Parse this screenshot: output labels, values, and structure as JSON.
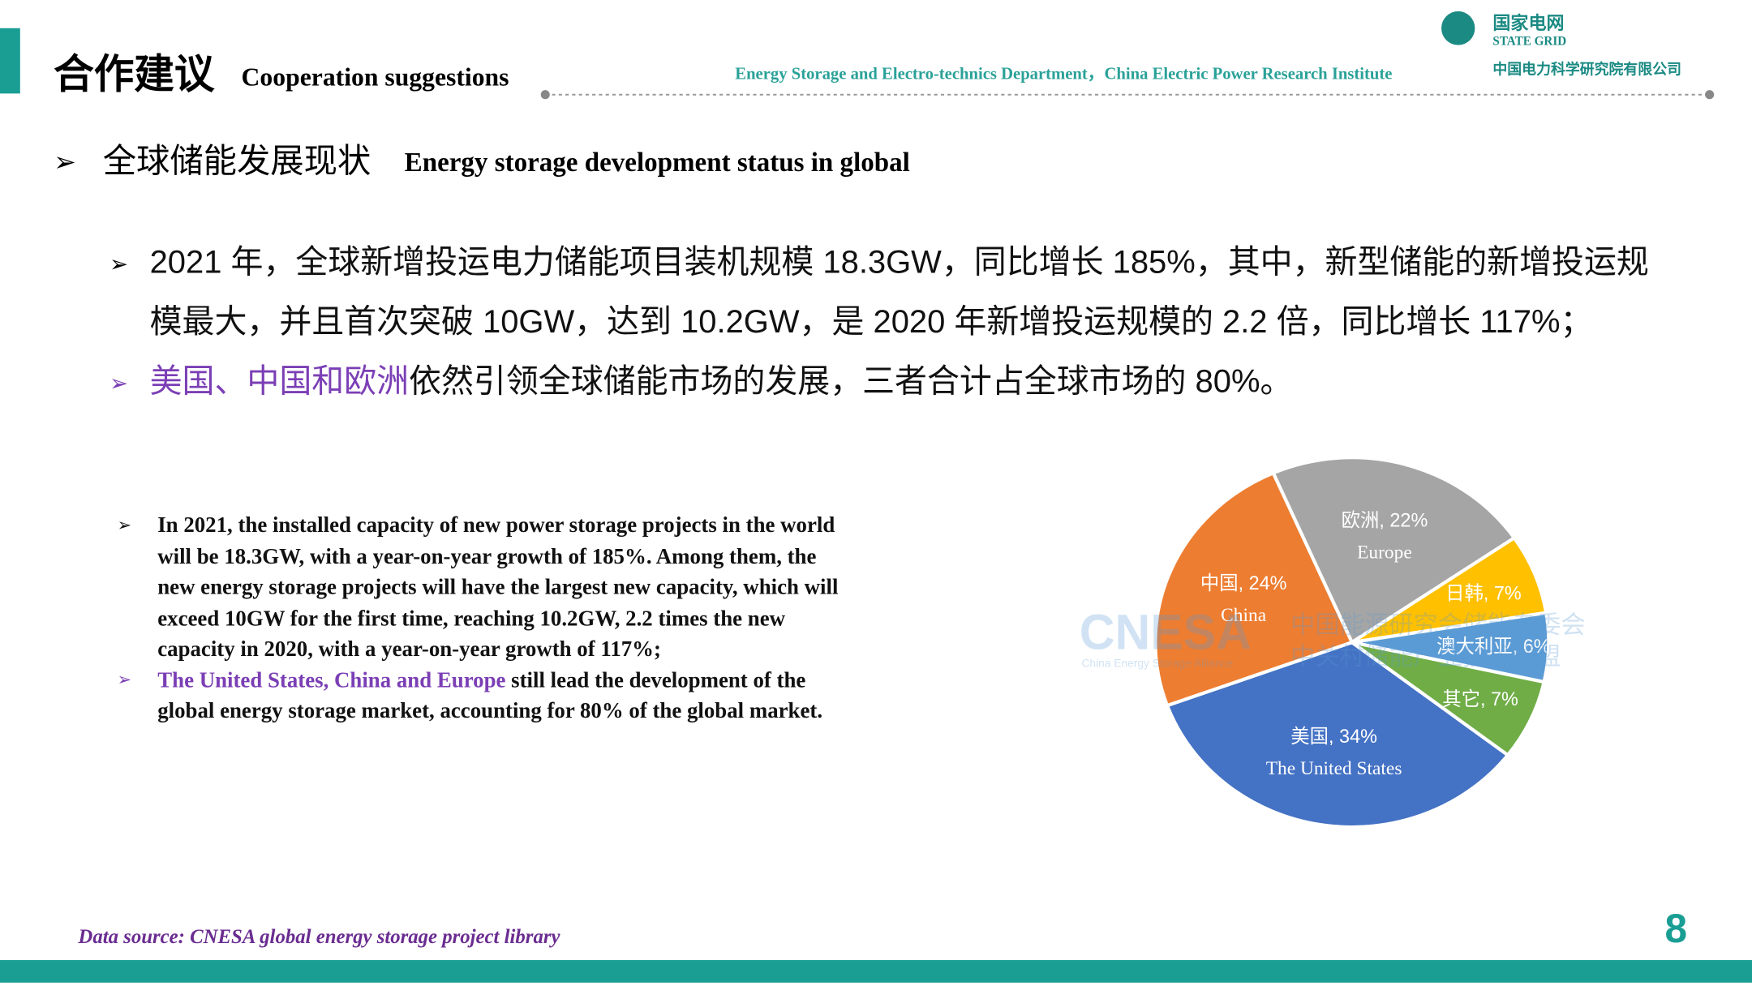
{
  "header": {
    "title_cn": "合作建议",
    "title_en": "Cooperation suggestions",
    "department": "Energy Storage and Electro-technics Department，China Electric Power Research Institute",
    "logo_cn": "国家电网",
    "logo_en": "STATE GRID",
    "logo_org": "中国电力科学研究院有限公司"
  },
  "section": {
    "cn": "全球储能发展现状",
    "en": "Energy storage development status in global"
  },
  "cn_points": [
    {
      "lines": [
        "2021 年，全球新增投运电力储能项目装机规模 18.3GW，同比增长 185%，其中，新型储能的新增投运规",
        "模最大，并且首次突破 10GW，达到 10.2GW，是 2020 年新增投运规模的 2.2 倍，同比增长 117%；"
      ]
    },
    {
      "highlight": "美国、中国和欧洲",
      "rest": "依然引领全球储能市场的发展，三者合计占全球市场的 80%。"
    }
  ],
  "en_points": [
    {
      "lines": [
        "In 2021, the installed capacity of new power storage projects in the world",
        "will be 18.3GW, with a year-on-year growth of 185%. Among them, the",
        "new energy storage projects will have the largest new capacity, which will",
        "exceed 10GW for the first time, reaching 10.2GW, 2.2 times the new",
        "capacity in 2020, with a year-on-year growth of 117%;"
      ]
    },
    {
      "highlight": "The United States, China and Europe",
      "rest": " still lead the development of the",
      "lines": [
        "global energy storage market, accounting for 80% of the global market."
      ]
    }
  ],
  "watermark": {
    "logo": "CNESA",
    "cn1": "中国能源研究会储能专委会",
    "cn2": "中关村储能产业技术联盟",
    "en": "China Energy Storage Alliance"
  },
  "chart_data": {
    "type": "pie",
    "values": [
      34,
      24,
      22,
      7,
      6,
      7
    ],
    "value_labels": [
      "美国, 34%",
      "中国, 24%",
      "欧洲, 22%",
      "日韩, 7%",
      "澳大利亚, 6%",
      "其它, 7%"
    ],
    "sublabels": [
      "The United States",
      "China",
      "Europe",
      null,
      null,
      null
    ],
    "colors": [
      "#4472c4",
      "#ed7d31",
      "#a5a5a5",
      "#ffc000",
      "#5b9bd5",
      "#70ad47"
    ]
  },
  "footer": {
    "source": "Data source: CNESA global energy storage project library",
    "page": "8"
  }
}
